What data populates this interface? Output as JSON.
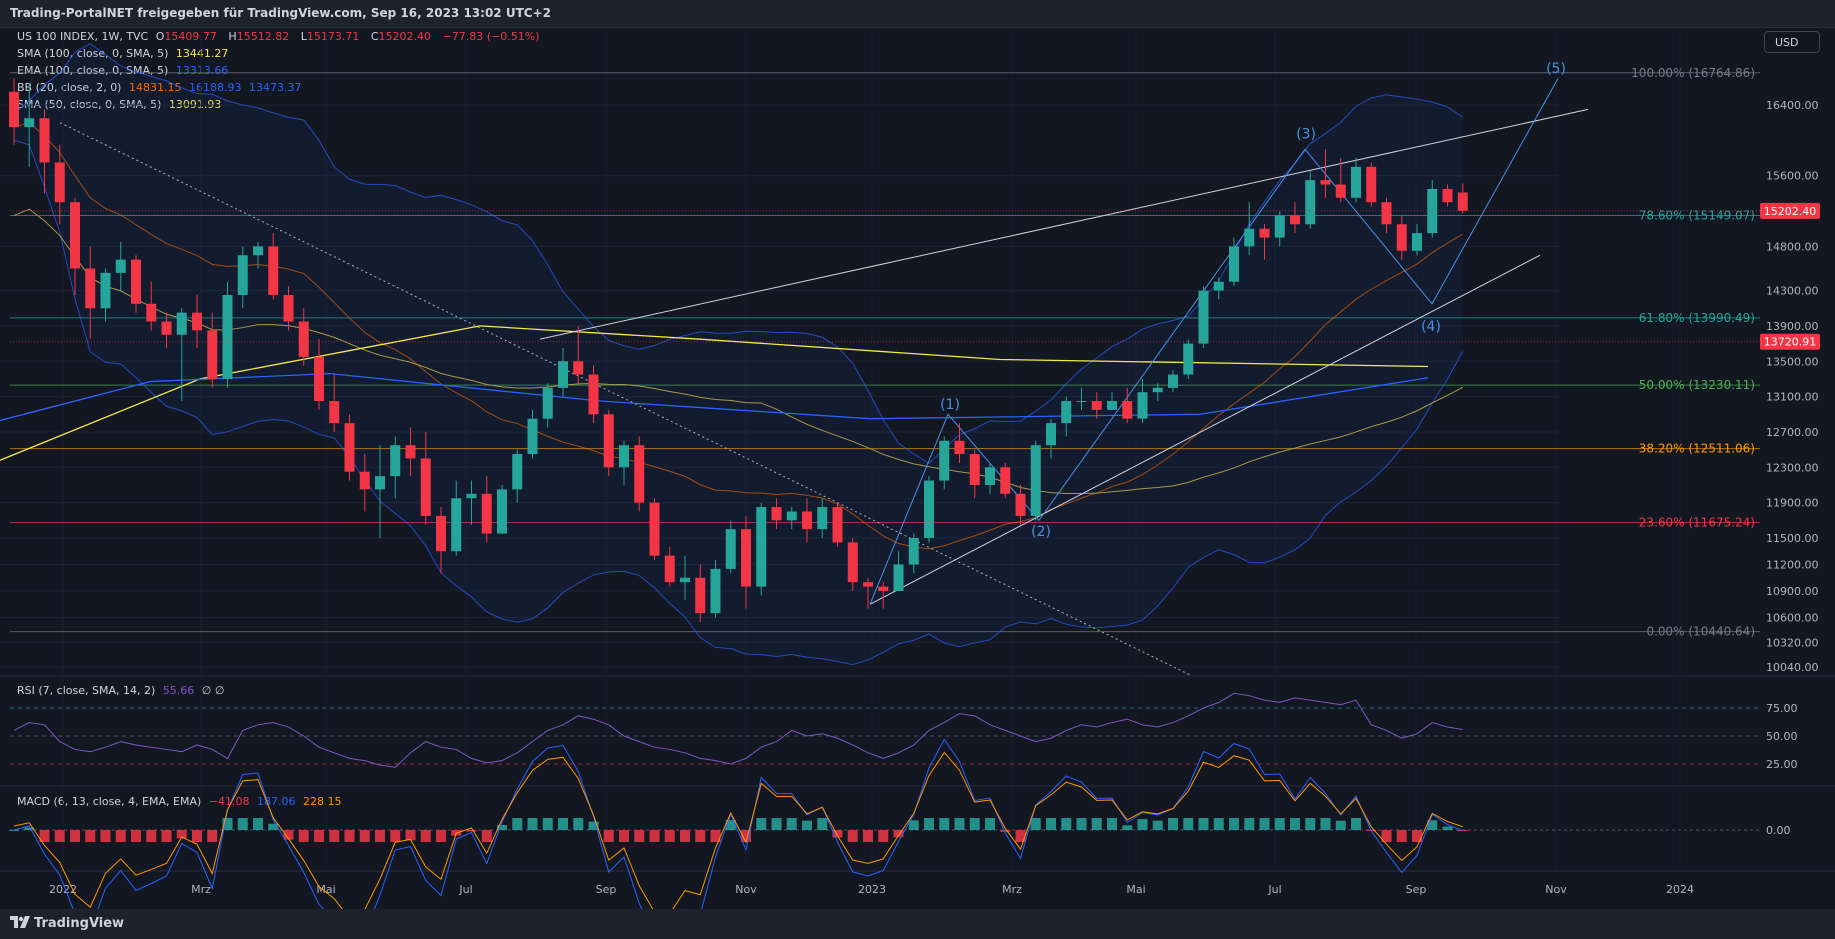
{
  "header": {
    "title": "Trading-PortalNET freigegeben für TradingView.com, Sep 16, 2023 13:02 UTC+2"
  },
  "currency_button": "USD",
  "footer": {
    "logo": "TradingView"
  },
  "colors": {
    "bull": "#26a69a",
    "bear": "#f23645",
    "background": "#131722",
    "bb": "#2962ff",
    "sma100": "#f5e84a",
    "ema100": "#2962ff",
    "sma50": "#f5e84a"
  },
  "legend": {
    "symbol": "US 100 INDEX, 1W, TVC",
    "o_label": "O",
    "o_val": "15409.77",
    "h_label": "H",
    "h_val": "15512.82",
    "l_label": "L",
    "l_val": "15173.71",
    "c_label": "C",
    "c_val": "15202.40",
    "chg": "−77.83 (−0.51%)",
    "sma100": "SMA (100, close, 0, SMA, 5)",
    "sma100_val": "13441.27",
    "ema100": "EMA (100, close, 0, SMA, 5)",
    "ema100_val": "13313.66",
    "bb": "BB (20, close, 2, 0)",
    "bb_mid": "14831.15",
    "bb_up": "16188.93",
    "bb_lo": "13473.37",
    "sma50": "SMA (50, close, 0, SMA, 5)",
    "sma50_val": "13091.93",
    "rsi": "RSI (7, close, SMA, 14, 2)",
    "rsi_val": "55.66",
    "rsi_extra": "∅ ∅",
    "macd": "MACD (6, 13, close, 4, EMA, EMA)",
    "macd_hist": "−41.08",
    "macd_line": "187.06",
    "macd_signal": "228.15"
  },
  "chart_data": [
    {
      "type": "candlestick",
      "timeframe": "1W",
      "y_ticks": [
        16400,
        15600,
        14800,
        14300,
        13900,
        13500,
        13100,
        12700,
        12300,
        11900,
        11500,
        11200,
        10900,
        10600,
        10320,
        10040
      ],
      "y_tick_labels": [
        "16400.00",
        "15600.00",
        "14800.00",
        "14300.00",
        "13900.00",
        "13500.00",
        "13100.00",
        "12700.00",
        "12300.00",
        "11900.00",
        "11500.00",
        "11200.00",
        "10900.00",
        "10600.00",
        "10320.00",
        "10040.00"
      ],
      "x_tick_labels": [
        "2022",
        "Mrz",
        "Mai",
        "Jul",
        "Sep",
        "Nov",
        "2023",
        "Mrz",
        "Mai",
        "Jul",
        "Sep",
        "Nov",
        "2024"
      ],
      "price_labels": [
        {
          "value": 15202.4,
          "text": "15202.40",
          "color": "#f23645"
        },
        {
          "value": 13720.91,
          "text": "13720.91",
          "color": "#f23645"
        }
      ],
      "fib_levels": [
        {
          "pct": "100.00%",
          "value": 16764.86,
          "text": "100.00% (16764.86)",
          "color": "#787b86"
        },
        {
          "pct": "78.60%",
          "value": 15149.07,
          "text": "78.60% (15149.07)",
          "color": "#26a69a"
        },
        {
          "pct": "61.80%",
          "value": 13990.49,
          "text": "61.80% (13990.49)",
          "color": "#26a69a"
        },
        {
          "pct": "50.00%",
          "value": 13230.11,
          "text": "50.00% (13230.11)",
          "color": "#4caf50"
        },
        {
          "pct": "38.20%",
          "value": 12511.06,
          "text": "38.20% (12511.06)",
          "color": "#ff9800"
        },
        {
          "pct": "23.60%",
          "value": 11675.24,
          "text": "23.60% (11675.24)",
          "color": "#f23645"
        },
        {
          "pct": "0.00%",
          "value": 10440.64,
          "text": "0.00% (10440.64)",
          "color": "#787b86"
        }
      ],
      "wave_labels": [
        "(1)",
        "(2)",
        "(3)",
        "(4)",
        "(5)"
      ],
      "candles": [
        [
          16550,
          16700,
          15950,
          16150
        ],
        [
          16150,
          16650,
          15700,
          16250
        ],
        [
          16250,
          16350,
          15400,
          15750
        ],
        [
          15750,
          15950,
          15050,
          15300
        ],
        [
          15300,
          15350,
          14250,
          14550
        ],
        [
          14550,
          14800,
          13750,
          14100
        ],
        [
          14100,
          14550,
          13950,
          14500
        ],
        [
          14500,
          14850,
          14300,
          14650
        ],
        [
          14650,
          14700,
          14050,
          14150
        ],
        [
          14150,
          14400,
          13850,
          13950
        ],
        [
          13950,
          14050,
          13650,
          13800
        ],
        [
          13800,
          14100,
          13050,
          14050
        ],
        [
          14050,
          14250,
          13650,
          13850
        ],
        [
          13850,
          14050,
          13200,
          13300
        ],
        [
          13300,
          14400,
          13200,
          14250
        ],
        [
          14250,
          14800,
          14100,
          14700
        ],
        [
          14700,
          14850,
          14550,
          14800
        ],
        [
          14800,
          14950,
          14200,
          14250
        ],
        [
          14250,
          14350,
          13850,
          13950
        ],
        [
          13950,
          14100,
          13450,
          13550
        ],
        [
          13550,
          13750,
          12950,
          13050
        ],
        [
          13050,
          13350,
          12700,
          12800
        ],
        [
          12800,
          12900,
          12150,
          12250
        ],
        [
          12250,
          12450,
          11800,
          12050
        ],
        [
          12050,
          12550,
          11500,
          12200
        ],
        [
          12200,
          12650,
          11950,
          12550
        ],
        [
          12550,
          12750,
          12200,
          12400
        ],
        [
          12400,
          12700,
          11650,
          11750
        ],
        [
          11750,
          11850,
          11100,
          11350
        ],
        [
          11350,
          12150,
          11300,
          11950
        ],
        [
          11950,
          12150,
          11650,
          12000
        ],
        [
          12000,
          12200,
          11450,
          11550
        ],
        [
          11550,
          12100,
          11550,
          12050
        ],
        [
          12050,
          12500,
          11900,
          12450
        ],
        [
          12450,
          12950,
          12400,
          12850
        ],
        [
          12850,
          13250,
          12750,
          13200
        ],
        [
          13200,
          13650,
          13100,
          13500
        ],
        [
          13500,
          13900,
          13250,
          13350
        ],
        [
          13350,
          13450,
          12800,
          12900
        ],
        [
          12900,
          12950,
          12200,
          12300
        ],
        [
          12300,
          12600,
          12100,
          12550
        ],
        [
          12550,
          12650,
          11800,
          11900
        ],
        [
          11900,
          11950,
          11250,
          11300
        ],
        [
          11300,
          11400,
          10950,
          11000
        ],
        [
          11000,
          11300,
          10800,
          11050
        ],
        [
          11050,
          11200,
          10550,
          10650
        ],
        [
          10650,
          11250,
          10600,
          11150
        ],
        [
          11150,
          11700,
          11100,
          11600
        ],
        [
          11600,
          11750,
          10700,
          10950
        ],
        [
          10950,
          11900,
          10850,
          11850
        ],
        [
          11850,
          11950,
          11600,
          11700
        ],
        [
          11700,
          11850,
          11600,
          11800
        ],
        [
          11800,
          11950,
          11450,
          11600
        ],
        [
          11600,
          11950,
          11500,
          11850
        ],
        [
          11850,
          11900,
          11400,
          11450
        ],
        [
          11450,
          11500,
          10900,
          11000
        ],
        [
          11000,
          11050,
          10700,
          10950
        ],
        [
          10950,
          11000,
          10700,
          10900
        ],
        [
          10900,
          11350,
          10900,
          11200
        ],
        [
          11200,
          11550,
          11100,
          11500
        ],
        [
          11500,
          12200,
          11450,
          12150
        ],
        [
          12150,
          12650,
          12050,
          12600
        ],
        [
          12600,
          12800,
          12350,
          12450
        ],
        [
          12450,
          12500,
          11950,
          12100
        ],
        [
          12100,
          12350,
          12000,
          12300
        ],
        [
          12300,
          12350,
          11950,
          12000
        ],
        [
          12000,
          12100,
          11650,
          11750
        ],
        [
          11750,
          12600,
          11700,
          12550
        ],
        [
          12550,
          12850,
          12400,
          12800
        ],
        [
          12800,
          13100,
          12650,
          13050
        ],
        [
          13050,
          13200,
          12950,
          13050
        ],
        [
          13050,
          13150,
          12850,
          12950
        ],
        [
          12950,
          13150,
          12950,
          13050
        ],
        [
          13050,
          13200,
          12800,
          12850
        ],
        [
          12850,
          13300,
          12800,
          13150
        ],
        [
          13150,
          13250,
          13050,
          13200
        ],
        [
          13200,
          13400,
          13150,
          13350
        ],
        [
          13350,
          13750,
          13300,
          13700
        ],
        [
          13700,
          14350,
          13650,
          14300
        ],
        [
          14300,
          14450,
          14200,
          14400
        ],
        [
          14400,
          14900,
          14350,
          14800
        ],
        [
          14800,
          15300,
          14700,
          15000
        ],
        [
          15000,
          15050,
          14650,
          14900
        ],
        [
          14900,
          15200,
          14800,
          15150
        ],
        [
          15150,
          15300,
          14950,
          15050
        ],
        [
          15050,
          15650,
          15000,
          15550
        ],
        [
          15550,
          15900,
          15350,
          15500
        ],
        [
          15500,
          15800,
          15300,
          15350
        ],
        [
          15350,
          15800,
          15300,
          15700
        ],
        [
          15700,
          15750,
          15250,
          15300
        ],
        [
          15300,
          15350,
          14950,
          15050
        ],
        [
          15050,
          15150,
          14650,
          14750
        ],
        [
          14750,
          15050,
          14700,
          14950
        ],
        [
          14950,
          15550,
          14900,
          15450
        ],
        [
          15450,
          15500,
          15250,
          15300
        ],
        [
          15409.77,
          15512.82,
          15173.71,
          15202.4
        ]
      ]
    },
    {
      "type": "line",
      "name": "RSI (7, close, SMA, 14, 2)",
      "y_ticks": [
        75,
        50,
        25
      ],
      "y_tick_labels": [
        "75.00",
        "50.00",
        "25.00"
      ],
      "last": 55.66,
      "values": [
        55,
        62,
        60,
        45,
        38,
        36,
        40,
        45,
        42,
        40,
        38,
        36,
        42,
        38,
        30,
        55,
        60,
        62,
        58,
        50,
        40,
        35,
        30,
        28,
        24,
        22,
        35,
        45,
        40,
        38,
        30,
        26,
        28,
        35,
        45,
        55,
        60,
        68,
        65,
        60,
        50,
        45,
        40,
        38,
        35,
        30,
        28,
        25,
        30,
        40,
        45,
        55,
        50,
        52,
        48,
        42,
        35,
        30,
        35,
        42,
        55,
        62,
        70,
        68,
        60,
        55,
        50,
        45,
        48,
        55,
        60,
        58,
        62,
        65,
        60,
        58,
        62,
        68,
        75,
        80,
        88,
        86,
        82,
        80,
        84,
        82,
        80,
        78,
        82,
        60,
        55,
        48,
        52,
        62,
        58,
        55.66
      ]
    },
    {
      "type": "macd",
      "name": "MACD (6, 13, close, 4, EMA, EMA)",
      "y_ticks": [
        0
      ],
      "y_tick_labels": [
        "0.00"
      ],
      "hist_last": -41.08,
      "macd_last": 187.06,
      "signal_last": 228.15
    }
  ]
}
